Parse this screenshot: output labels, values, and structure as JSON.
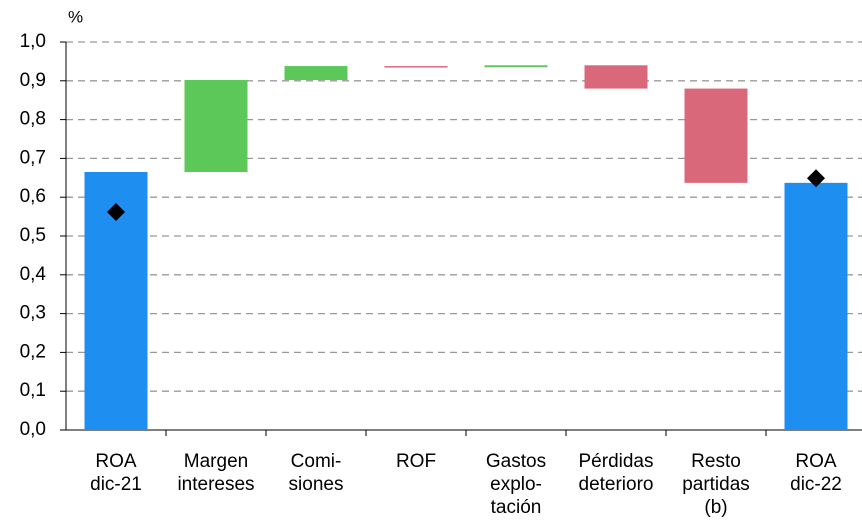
{
  "chart_data": {
    "type": "waterfall",
    "ylabel": "%",
    "categories": [
      [
        "ROA",
        "dic-21"
      ],
      [
        "Margen",
        "intereses"
      ],
      [
        "Comi-",
        "siones"
      ],
      [
        "ROF"
      ],
      [
        "Gastos",
        "explo-",
        "tación"
      ],
      [
        "Pérdidas",
        "deterioro"
      ],
      [
        "Resto",
        "partidas",
        "(b)"
      ],
      [
        "ROA",
        "dic-22"
      ]
    ],
    "values": [
      0.665,
      0.237,
      0.036,
      -0.003,
      0.005,
      -0.06,
      -0.243,
      0.637
    ],
    "totals": [
      true,
      false,
      false,
      false,
      false,
      false,
      false,
      true
    ],
    "colors": {
      "total": "#1f8ef1",
      "increase": "#5cc85a",
      "decrease": "#d9697a"
    },
    "markers": {
      "color": "#000000",
      "values": [
        0.562,
        null,
        null,
        null,
        null,
        null,
        null,
        0.649
      ]
    },
    "ylim": [
      0,
      1
    ],
    "yticks": [
      {
        "value": 0,
        "label": "0,0"
      },
      {
        "value": 0.1,
        "label": "0,1"
      },
      {
        "value": 0.2,
        "label": "0,2"
      },
      {
        "value": 0.3,
        "label": "0,3"
      },
      {
        "value": 0.4,
        "label": "0,4"
      },
      {
        "value": 0.5,
        "label": "0,5"
      },
      {
        "value": 0.6,
        "label": "0,6"
      },
      {
        "value": 0.7,
        "label": "0,7"
      },
      {
        "value": 0.8,
        "label": "0,8"
      },
      {
        "value": 0.9,
        "label": "0,9"
      },
      {
        "value": 1,
        "label": "1,0"
      }
    ],
    "grid": true
  }
}
